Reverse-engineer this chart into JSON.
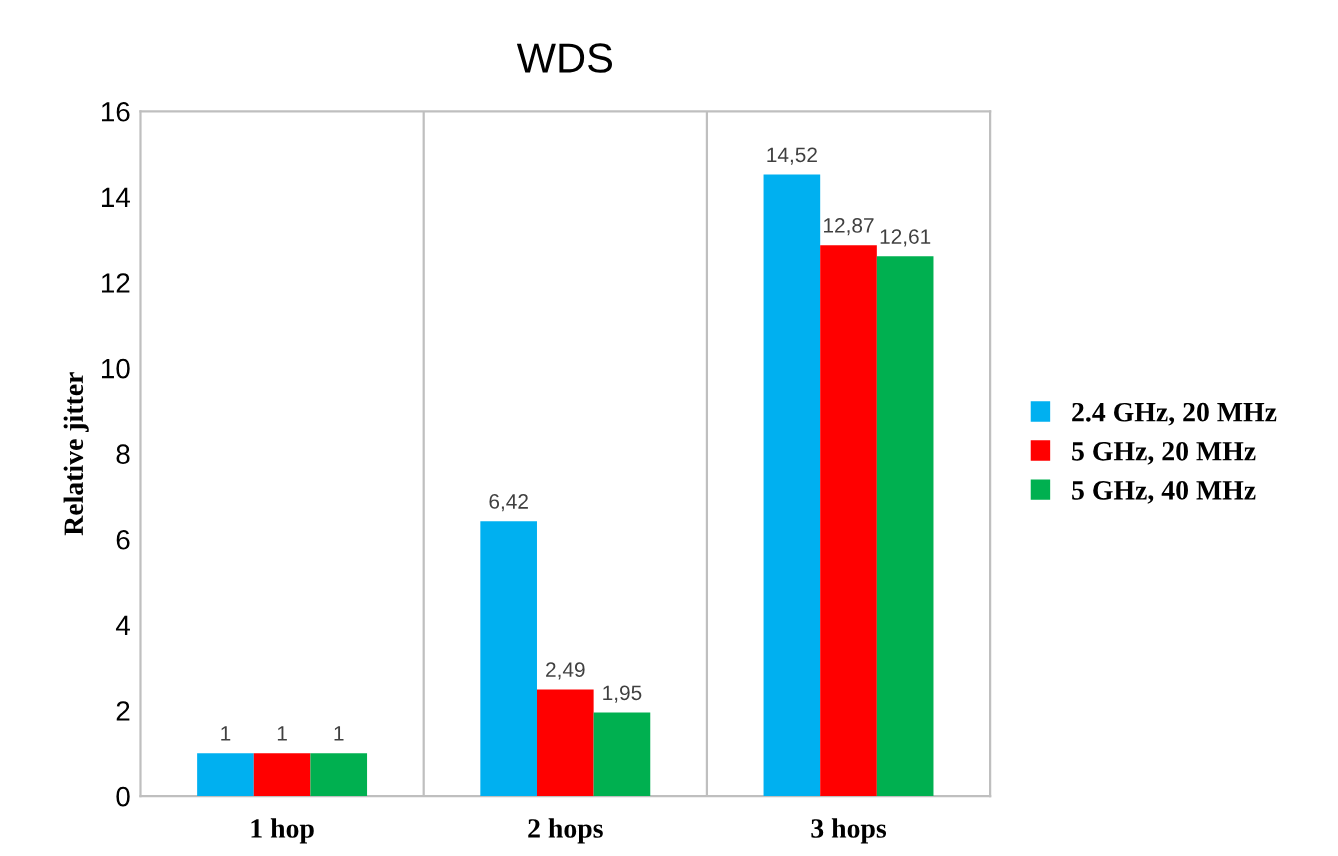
{
  "chart_data": {
    "type": "bar",
    "title": "WDS",
    "ylabel": "Relative jitter",
    "categories": [
      "1 hop",
      "2 hops",
      "3 hops"
    ],
    "series": [
      {
        "name": "2.4 GHz, 20 MHz",
        "color": "#00b0f0",
        "values": [
          1,
          6.42,
          14.52
        ],
        "value_labels": [
          "1",
          "6,42",
          "14,52"
        ]
      },
      {
        "name": "5 GHz, 20 MHz",
        "color": "#ff0000",
        "values": [
          1,
          2.49,
          12.87
        ],
        "value_labels": [
          "1",
          "2,49",
          "12,87"
        ]
      },
      {
        "name": "5 GHz, 40 MHz",
        "color": "#00b050",
        "values": [
          1,
          1.95,
          12.61
        ],
        "value_labels": [
          "1",
          "1,95",
          "12,61"
        ]
      }
    ],
    "ylim": [
      0,
      16
    ],
    "yticks": [
      0,
      2,
      4,
      6,
      8,
      10,
      12,
      14,
      16
    ],
    "grid": "x",
    "legend": "right"
  }
}
